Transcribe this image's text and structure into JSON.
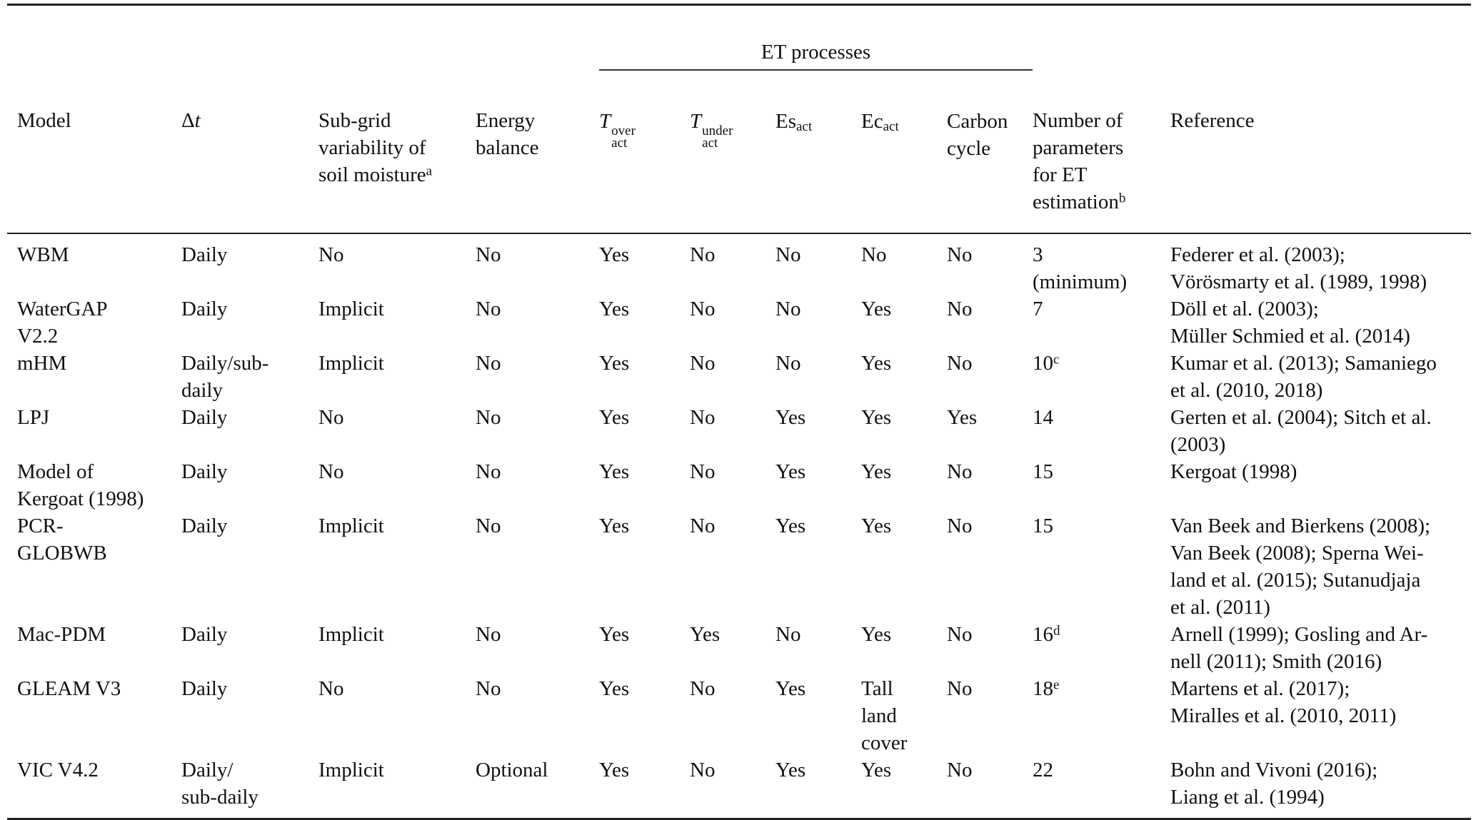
{
  "colors": {
    "background": "#ffffff",
    "text": "#111111",
    "rule_heavy": "#222222",
    "rule_light": "#333333"
  },
  "table": {
    "group_header": "ET processes",
    "columns": {
      "model": "Model",
      "dt": {
        "delta": "Δ",
        "var": "t"
      },
      "subgrid": {
        "text": "Sub-grid\nvariability of\nsoil moisture",
        "sup": "a"
      },
      "energy": "Energy\nbalance",
      "t_over": {
        "base": "T",
        "sup": "over",
        "sub": "act"
      },
      "t_under": {
        "base": "T",
        "sup": "under",
        "sub": "act"
      },
      "es": {
        "base": "Es",
        "sub": "act"
      },
      "ec": {
        "base": "Ec",
        "sub": "act"
      },
      "carbon": "Carbon\ncycle",
      "nparams": {
        "text": "Number of\nparameters\nfor ET\nestimation",
        "sup": "b"
      },
      "reference": "Reference"
    },
    "rows": [
      {
        "model": "WBM",
        "dt": "Daily",
        "subgrid": "No",
        "energy": "No",
        "t_over": "Yes",
        "t_under": "No",
        "es": "No",
        "ec": "No",
        "carbon": "No",
        "nparams": {
          "value": "3\n(minimum)"
        },
        "reference": "Federer et al. (2003);\nVörösmarty et al. (1989, 1998)"
      },
      {
        "model": "WaterGAP\nV2.2",
        "dt": "Daily",
        "subgrid": "Implicit",
        "energy": "No",
        "t_over": "Yes",
        "t_under": "No",
        "es": "No",
        "ec": "Yes",
        "carbon": "No",
        "nparams": {
          "value": "7"
        },
        "reference": "Döll et al. (2003);\nMüller Schmied et al. (2014)"
      },
      {
        "model": "mHM",
        "dt": "Daily/sub-\ndaily",
        "subgrid": "Implicit",
        "energy": "No",
        "t_over": "Yes",
        "t_under": "No",
        "es": "No",
        "ec": "Yes",
        "carbon": "No",
        "nparams": {
          "value": "10",
          "sup": "c"
        },
        "reference": "Kumar et al. (2013); Samaniego\net al. (2010, 2018)"
      },
      {
        "model": "LPJ",
        "dt": "Daily",
        "subgrid": "No",
        "energy": "No",
        "t_over": "Yes",
        "t_under": "No",
        "es": "Yes",
        "ec": "Yes",
        "carbon": "Yes",
        "nparams": {
          "value": "14"
        },
        "reference": "Gerten et al. (2004); Sitch et al.\n(2003)"
      },
      {
        "model": "Model of\nKergoat (1998)",
        "dt": "Daily",
        "subgrid": "No",
        "energy": "No",
        "t_over": "Yes",
        "t_under": "No",
        "es": "Yes",
        "ec": "Yes",
        "carbon": "No",
        "nparams": {
          "value": "15"
        },
        "reference": "Kergoat (1998)"
      },
      {
        "model": "PCR-\nGLOBWB",
        "dt": "Daily",
        "subgrid": "Implicit",
        "energy": "No",
        "t_over": "Yes",
        "t_under": "No",
        "es": "Yes",
        "ec": "Yes",
        "carbon": "No",
        "nparams": {
          "value": "15"
        },
        "reference": "Van Beek and Bierkens (2008);\nVan Beek (2008); Sperna Wei-\nland et al. (2015); Sutanudjaja\net al. (2011)"
      },
      {
        "model": "Mac-PDM",
        "dt": "Daily",
        "subgrid": "Implicit",
        "energy": "No",
        "t_over": "Yes",
        "t_under": "Yes",
        "es": "No",
        "ec": "Yes",
        "carbon": "No",
        "nparams": {
          "value": "16",
          "sup": "d"
        },
        "reference": "Arnell (1999); Gosling and Ar-\nnell (2011); Smith (2016)"
      },
      {
        "model": "GLEAM V3",
        "dt": "Daily",
        "subgrid": "No",
        "energy": "No",
        "t_over": "Yes",
        "t_under": "No",
        "es": "Yes",
        "ec": "Tall\nland\ncover",
        "carbon": "No",
        "nparams": {
          "value": "18",
          "sup": "e"
        },
        "reference": "Martens et al. (2017);\nMiralles et al. (2010, 2011)"
      },
      {
        "model": "VIC V4.2",
        "dt": "Daily/\nsub-daily",
        "subgrid": "Implicit",
        "energy": "Optional",
        "t_over": "Yes",
        "t_under": "No",
        "es": "Yes",
        "ec": "Yes",
        "carbon": "No",
        "nparams": {
          "value": "22"
        },
        "reference": "Bohn and Vivoni (2016);\nLiang et al. (1994)"
      }
    ]
  }
}
